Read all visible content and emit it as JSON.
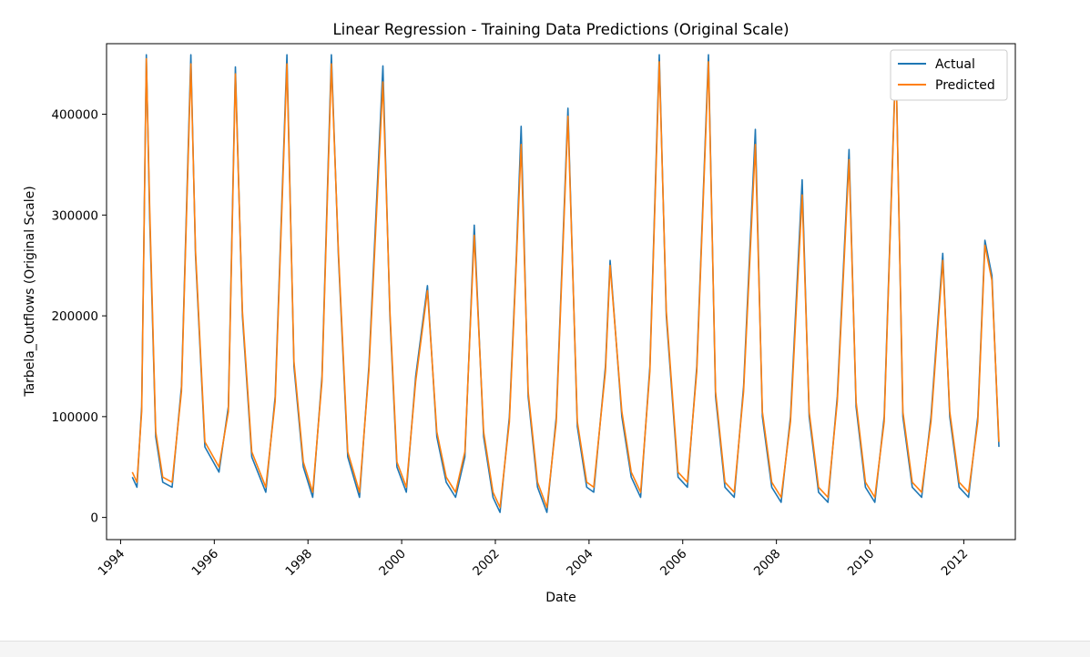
{
  "chart_data": {
    "type": "line",
    "title": "Linear Regression - Training Data Predictions (Original Scale)",
    "xlabel": "Date",
    "ylabel": "Tarbela_Outflows (Original Scale)",
    "xlim": [
      1993.7,
      2013.1
    ],
    "ylim": [
      -22000,
      470000
    ],
    "x_ticks": [
      "1994",
      "1996",
      "1998",
      "2000",
      "2002",
      "2004",
      "2006",
      "2008",
      "2010",
      "2012"
    ],
    "y_ticks": [
      "0",
      "100000",
      "200000",
      "300000",
      "400000"
    ],
    "grid": false,
    "legend_position": "top-right",
    "series": [
      {
        "name": "Actual",
        "color": "#1f77b4",
        "points": [
          [
            1994.25,
            40000
          ],
          [
            1994.35,
            30000
          ],
          [
            1994.45,
            110000
          ],
          [
            1994.55,
            459000
          ],
          [
            1994.62,
            300000
          ],
          [
            1994.75,
            80000
          ],
          [
            1994.9,
            35000
          ],
          [
            1995.1,
            30000
          ],
          [
            1995.3,
            130000
          ],
          [
            1995.5,
            459000
          ],
          [
            1995.6,
            260000
          ],
          [
            1995.8,
            70000
          ],
          [
            1996.1,
            45000
          ],
          [
            1996.3,
            110000
          ],
          [
            1996.45,
            447000
          ],
          [
            1996.6,
            200000
          ],
          [
            1996.8,
            60000
          ],
          [
            1997.1,
            25000
          ],
          [
            1997.3,
            120000
          ],
          [
            1997.55,
            459000
          ],
          [
            1997.7,
            150000
          ],
          [
            1997.9,
            50000
          ],
          [
            1998.1,
            20000
          ],
          [
            1998.3,
            140000
          ],
          [
            1998.5,
            459000
          ],
          [
            1998.65,
            260000
          ],
          [
            1998.85,
            60000
          ],
          [
            1999.1,
            20000
          ],
          [
            1999.3,
            150000
          ],
          [
            1999.6,
            448000
          ],
          [
            1999.75,
            200000
          ],
          [
            1999.9,
            50000
          ],
          [
            2000.1,
            25000
          ],
          [
            2000.3,
            140000
          ],
          [
            2000.55,
            230000
          ],
          [
            2000.75,
            80000
          ],
          [
            2000.95,
            35000
          ],
          [
            2001.15,
            20000
          ],
          [
            2001.35,
            60000
          ],
          [
            2001.55,
            290000
          ],
          [
            2001.75,
            80000
          ],
          [
            2001.95,
            20000
          ],
          [
            2002.1,
            5000
          ],
          [
            2002.3,
            100000
          ],
          [
            2002.45,
            260000
          ],
          [
            2002.55,
            388000
          ],
          [
            2002.7,
            120000
          ],
          [
            2002.9,
            30000
          ],
          [
            2003.1,
            5000
          ],
          [
            2003.3,
            100000
          ],
          [
            2003.55,
            406000
          ],
          [
            2003.75,
            90000
          ],
          [
            2003.95,
            30000
          ],
          [
            2004.1,
            25000
          ],
          [
            2004.35,
            150000
          ],
          [
            2004.45,
            255000
          ],
          [
            2004.7,
            100000
          ],
          [
            2004.9,
            40000
          ],
          [
            2005.1,
            20000
          ],
          [
            2005.3,
            150000
          ],
          [
            2005.5,
            459000
          ],
          [
            2005.65,
            200000
          ],
          [
            2005.9,
            40000
          ],
          [
            2006.1,
            30000
          ],
          [
            2006.3,
            150000
          ],
          [
            2006.55,
            459000
          ],
          [
            2006.7,
            120000
          ],
          [
            2006.9,
            30000
          ],
          [
            2007.1,
            20000
          ],
          [
            2007.3,
            130000
          ],
          [
            2007.55,
            385000
          ],
          [
            2007.7,
            100000
          ],
          [
            2007.9,
            30000
          ],
          [
            2008.1,
            15000
          ],
          [
            2008.3,
            100000
          ],
          [
            2008.55,
            335000
          ],
          [
            2008.7,
            100000
          ],
          [
            2008.9,
            25000
          ],
          [
            2009.1,
            15000
          ],
          [
            2009.3,
            120000
          ],
          [
            2009.55,
            365000
          ],
          [
            2009.7,
            110000
          ],
          [
            2009.9,
            30000
          ],
          [
            2010.1,
            15000
          ],
          [
            2010.3,
            100000
          ],
          [
            2010.55,
            459000
          ],
          [
            2010.7,
            100000
          ],
          [
            2010.9,
            30000
          ],
          [
            2011.1,
            20000
          ],
          [
            2011.3,
            100000
          ],
          [
            2011.55,
            262000
          ],
          [
            2011.7,
            100000
          ],
          [
            2011.9,
            30000
          ],
          [
            2012.1,
            20000
          ],
          [
            2012.3,
            100000
          ],
          [
            2012.45,
            275000
          ],
          [
            2012.6,
            240000
          ],
          [
            2012.75,
            70000
          ]
        ]
      },
      {
        "name": "Predicted",
        "color": "#ff7f0e",
        "points": [
          [
            1994.25,
            45000
          ],
          [
            1994.35,
            35000
          ],
          [
            1994.45,
            105000
          ],
          [
            1994.55,
            455000
          ],
          [
            1994.62,
            310000
          ],
          [
            1994.75,
            85000
          ],
          [
            1994.9,
            40000
          ],
          [
            1995.1,
            35000
          ],
          [
            1995.3,
            125000
          ],
          [
            1995.5,
            450000
          ],
          [
            1995.6,
            265000
          ],
          [
            1995.8,
            75000
          ],
          [
            1996.1,
            50000
          ],
          [
            1996.3,
            105000
          ],
          [
            1996.45,
            440000
          ],
          [
            1996.6,
            205000
          ],
          [
            1996.8,
            65000
          ],
          [
            1997.1,
            30000
          ],
          [
            1997.3,
            115000
          ],
          [
            1997.55,
            450000
          ],
          [
            1997.7,
            155000
          ],
          [
            1997.9,
            55000
          ],
          [
            1998.1,
            25000
          ],
          [
            1998.3,
            135000
          ],
          [
            1998.5,
            450000
          ],
          [
            1998.65,
            265000
          ],
          [
            1998.85,
            65000
          ],
          [
            1999.1,
            25000
          ],
          [
            1999.3,
            145000
          ],
          [
            1999.6,
            432000
          ],
          [
            1999.75,
            205000
          ],
          [
            1999.9,
            55000
          ],
          [
            2000.1,
            30000
          ],
          [
            2000.3,
            135000
          ],
          [
            2000.55,
            225000
          ],
          [
            2000.75,
            85000
          ],
          [
            2000.95,
            40000
          ],
          [
            2001.15,
            25000
          ],
          [
            2001.35,
            65000
          ],
          [
            2001.55,
            280000
          ],
          [
            2001.75,
            85000
          ],
          [
            2001.95,
            25000
          ],
          [
            2002.1,
            10000
          ],
          [
            2002.3,
            95000
          ],
          [
            2002.45,
            255000
          ],
          [
            2002.55,
            370000
          ],
          [
            2002.7,
            125000
          ],
          [
            2002.9,
            35000
          ],
          [
            2003.1,
            10000
          ],
          [
            2003.3,
            95000
          ],
          [
            2003.55,
            398000
          ],
          [
            2003.75,
            95000
          ],
          [
            2003.95,
            35000
          ],
          [
            2004.1,
            30000
          ],
          [
            2004.35,
            145000
          ],
          [
            2004.45,
            250000
          ],
          [
            2004.7,
            105000
          ],
          [
            2004.9,
            45000
          ],
          [
            2005.1,
            25000
          ],
          [
            2005.3,
            145000
          ],
          [
            2005.5,
            452000
          ],
          [
            2005.65,
            205000
          ],
          [
            2005.9,
            45000
          ],
          [
            2006.1,
            35000
          ],
          [
            2006.3,
            145000
          ],
          [
            2006.55,
            452000
          ],
          [
            2006.7,
            125000
          ],
          [
            2006.9,
            35000
          ],
          [
            2007.1,
            25000
          ],
          [
            2007.3,
            125000
          ],
          [
            2007.55,
            370000
          ],
          [
            2007.7,
            105000
          ],
          [
            2007.9,
            35000
          ],
          [
            2008.1,
            20000
          ],
          [
            2008.3,
            95000
          ],
          [
            2008.55,
            320000
          ],
          [
            2008.7,
            105000
          ],
          [
            2008.9,
            30000
          ],
          [
            2009.1,
            20000
          ],
          [
            2009.3,
            115000
          ],
          [
            2009.55,
            355000
          ],
          [
            2009.7,
            115000
          ],
          [
            2009.9,
            35000
          ],
          [
            2010.1,
            20000
          ],
          [
            2010.3,
            95000
          ],
          [
            2010.55,
            455000
          ],
          [
            2010.7,
            105000
          ],
          [
            2010.9,
            35000
          ],
          [
            2011.1,
            25000
          ],
          [
            2011.3,
            95000
          ],
          [
            2011.55,
            255000
          ],
          [
            2011.7,
            105000
          ],
          [
            2011.9,
            35000
          ],
          [
            2012.1,
            25000
          ],
          [
            2012.3,
            95000
          ],
          [
            2012.45,
            270000
          ],
          [
            2012.6,
            235000
          ],
          [
            2012.75,
            75000
          ]
        ]
      }
    ]
  }
}
